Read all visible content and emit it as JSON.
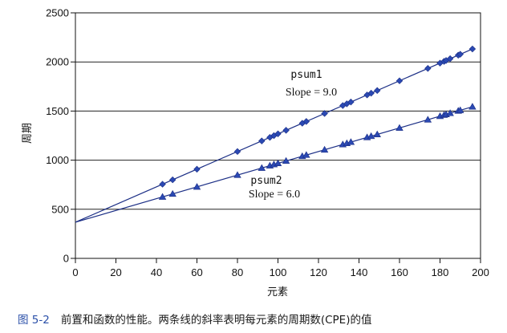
{
  "chart_data": {
    "type": "line",
    "xlabel": "元素",
    "ylabel": "周期",
    "xlim": [
      0,
      200
    ],
    "ylim": [
      0,
      2500
    ],
    "xticks": [
      0,
      20,
      40,
      60,
      80,
      100,
      120,
      140,
      160,
      180,
      200
    ],
    "yticks": [
      0,
      500,
      1000,
      1500,
      2000,
      2500
    ],
    "grid": "horizontal",
    "series": [
      {
        "name": "psum1",
        "marker": "diamond",
        "slope_label": "Slope = 9.0",
        "fit": {
          "intercept": 368,
          "slope": 9.0
        },
        "x": [
          43,
          48,
          60,
          80,
          92,
          96,
          98,
          100,
          104,
          112,
          114,
          123,
          132,
          134,
          136,
          144,
          146,
          149,
          160,
          174,
          180,
          182,
          183,
          185,
          189,
          190,
          196
        ],
        "y": [
          755,
          800,
          908,
          1088,
          1196,
          1232,
          1250,
          1268,
          1304,
          1376,
          1394,
          1475,
          1556,
          1574,
          1592,
          1664,
          1682,
          1709,
          1808,
          1934,
          1988,
          2006,
          2015,
          2033,
          2069,
          2078,
          2132
        ]
      },
      {
        "name": "psum2",
        "marker": "triangle",
        "slope_label": "Slope = 6.0",
        "fit": {
          "intercept": 368,
          "slope": 6.0
        },
        "x": [
          43,
          48,
          60,
          80,
          92,
          96,
          98,
          100,
          104,
          112,
          114,
          123,
          132,
          134,
          136,
          144,
          146,
          149,
          160,
          174,
          180,
          182,
          183,
          185,
          189,
          190,
          196
        ],
        "y": [
          626,
          656,
          728,
          848,
          920,
          944,
          956,
          968,
          992,
          1040,
          1052,
          1106,
          1160,
          1172,
          1184,
          1232,
          1244,
          1262,
          1328,
          1412,
          1448,
          1460,
          1466,
          1478,
          1502,
          1508,
          1544
        ]
      }
    ]
  },
  "caption": {
    "figure_label": "图 5-2",
    "text": "前置和函数的性能。两条线的斜率表明每元素的周期数(CPE)的值"
  },
  "colors": {
    "series": "#2b49b3",
    "series_dark": "#1c2f86",
    "axis": "#111111"
  }
}
